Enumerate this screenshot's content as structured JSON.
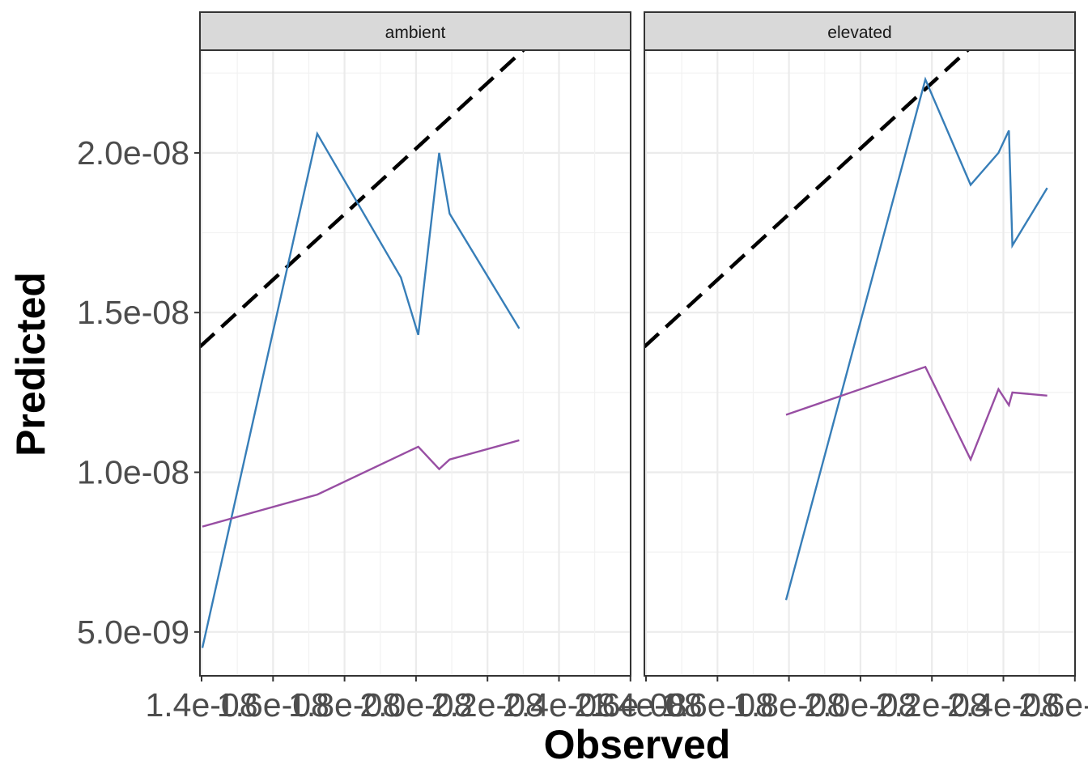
{
  "chart_data": {
    "type": "line",
    "xlabel": "Observed",
    "ylabel": "Predicted",
    "ylim": [
      3.8e-09,
      2.33e-08
    ],
    "y_ticks": [
      {
        "value": 5e-09,
        "label": "5.0e-09"
      },
      {
        "value": 1e-08,
        "label": "1.0e-08"
      },
      {
        "value": 1.5e-08,
        "label": "1.5e-08"
      },
      {
        "value": 2e-08,
        "label": "2.0e-08"
      }
    ],
    "x_tick_labels": [
      "1.4e-08",
      "1.6e-08",
      "1.8e-08",
      "2.0e-08",
      "2.2e-08",
      "2.4e-08",
      "2.6e-08"
    ],
    "grid": true,
    "reference_line": {
      "type": "identity",
      "style": "dashed",
      "color": "#000000"
    },
    "colors": {
      "blue": "#377eb8",
      "purple": "#984ea3"
    },
    "facets": [
      {
        "strip": "ambient",
        "xlim": [
          1.393e-08,
          2.63e-08
        ],
        "series": [
          {
            "color": "#377eb8",
            "x": [
              1.4e-08,
              1.73e-08,
              1.97e-08,
              2.02e-08,
              2.08e-08,
              2.11e-08,
              2.31e-08
            ],
            "y": [
              4.5e-09,
              2.06e-08,
              1.61e-08,
              1.43e-08,
              2e-08,
              1.81e-08,
              1.45e-08
            ]
          },
          {
            "color": "#984ea3",
            "x": [
              1.4e-08,
              1.73e-08,
              2.02e-08,
              2.08e-08,
              2.11e-08,
              2.31e-08
            ],
            "y": [
              8.3e-09,
              9.3e-09,
              1.08e-08,
              1.01e-08,
              1.04e-08,
              1.1e-08
            ]
          }
        ]
      },
      {
        "strip": "elevated",
        "xlim": [
          1.393e-08,
          2.63e-08
        ],
        "series": [
          {
            "color": "#377eb8",
            "x": [
              1.8e-08,
              2.2e-08,
              2.33e-08,
              2.41e-08,
              2.44e-08,
              2.45e-08,
              2.55e-08
            ],
            "y": [
              6e-09,
              2.23e-08,
              1.9e-08,
              2e-08,
              2.07e-08,
              1.71e-08,
              1.89e-08
            ]
          },
          {
            "color": "#984ea3",
            "x": [
              1.8e-08,
              2.2e-08,
              2.33e-08,
              2.41e-08,
              2.44e-08,
              2.45e-08,
              2.55e-08
            ],
            "y": [
              1.18e-08,
              1.33e-08,
              1.04e-08,
              1.26e-08,
              1.21e-08,
              1.25e-08,
              1.24e-08
            ]
          }
        ]
      }
    ]
  }
}
